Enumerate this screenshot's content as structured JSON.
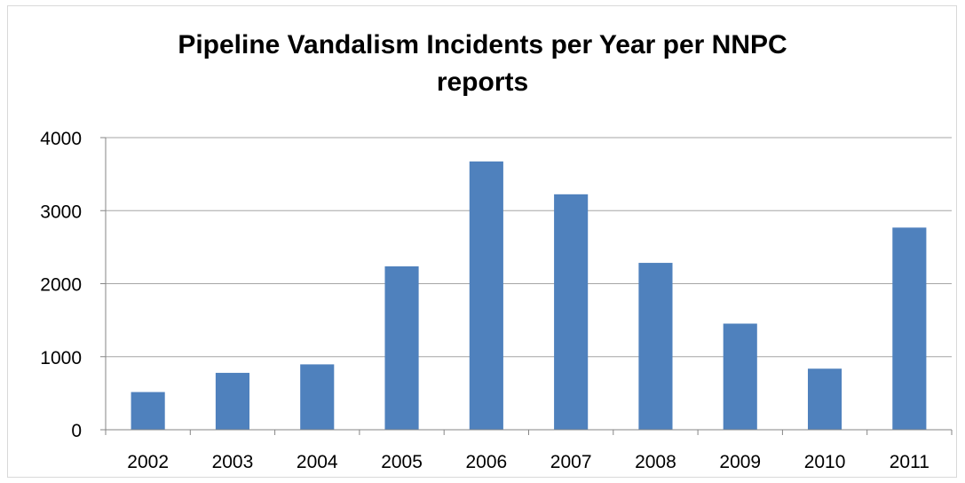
{
  "chart_data": {
    "type": "bar",
    "title_lines": [
      "Pipeline Vandalism Incidents per Year per NNPC",
      "reports"
    ],
    "categories": [
      "2002",
      "2003",
      "2004",
      "2005",
      "2006",
      "2007",
      "2008",
      "2009",
      "2010",
      "2011"
    ],
    "series": [
      {
        "values": [
          516,
          779,
          895,
          2237,
          3674,
          3224,
          2285,
          1453,
          836,
          2768
        ]
      }
    ],
    "xlabel": "",
    "ylabel": "",
    "ylim": [
      0,
      4000
    ],
    "yticks": [
      "0",
      "1000",
      "2000",
      "3000",
      "4000"
    ],
    "grid": true,
    "legend": "none",
    "bar_color": "#4f81bd",
    "grid_color": "#a6a6a6",
    "axis_color": "#868686"
  }
}
